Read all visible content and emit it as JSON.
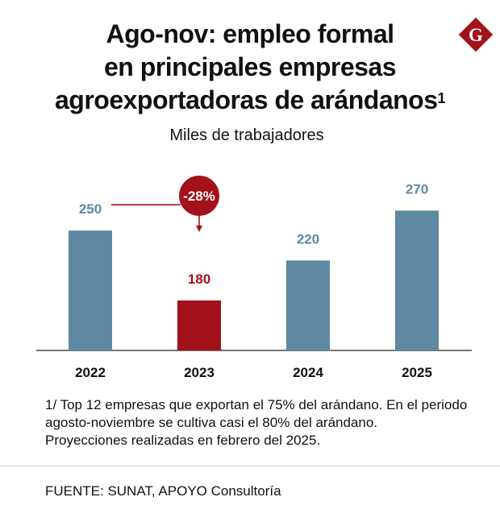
{
  "title": {
    "line1": "Ago-nov: empleo formal",
    "line2": "en principales empresas",
    "line3": "agroexportadoras de arándanos",
    "note_marker": "1"
  },
  "logo": {
    "letter": "G",
    "color": "#a3111a"
  },
  "chart_data": {
    "type": "bar",
    "title": "Ago-nov: empleo formal en principales empresas agroexportadoras de arándanos",
    "subtitle": "Miles de trabajadores",
    "categories": [
      "2022",
      "2023",
      "2024",
      "2025"
    ],
    "values": [
      250,
      180,
      220,
      270
    ],
    "value_labels": [
      "250",
      "180",
      "220",
      "270"
    ],
    "bar_colors": [
      "#5f88a2",
      "#a3111a",
      "#5f88a2",
      "#5f88a2"
    ],
    "label_colors": [
      "#5f88a2",
      "#a3111a",
      "#5f88a2",
      "#5f88a2"
    ],
    "ylim": [
      0,
      300
    ],
    "xlabel": "",
    "ylabel": "",
    "annotation": {
      "text": "-28%",
      "from": "2022",
      "to": "2023",
      "color": "#a3111a"
    }
  },
  "footnote": {
    "line1": "1/ Top 12 empresas que exportan el 75% del arándano. En el periodo",
    "line2": "agosto-noviembre se cultiva casi el 80% del arándano.",
    "line3": "Proyecciones realizadas en febrero del 2025."
  },
  "source": "FUENTE: SUNAT, APOYO Consultoría"
}
